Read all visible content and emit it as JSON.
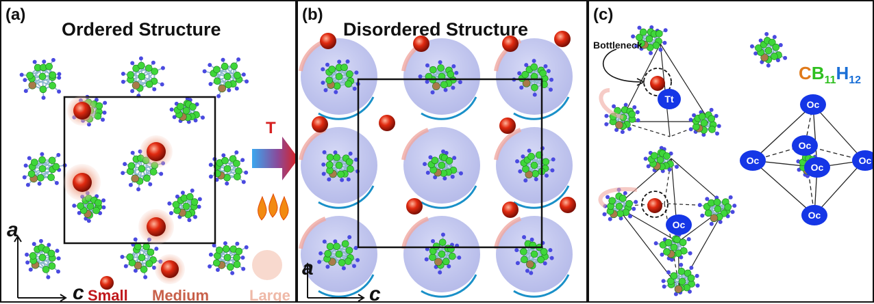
{
  "panel_a": {
    "label": "(a)",
    "title": "Ordered Structure",
    "axis_a": "a",
    "axis_c": "c",
    "legend": {
      "small": "Small",
      "medium": "Medium",
      "large": "Large"
    },
    "arrow_label": "T"
  },
  "panel_b": {
    "label": "(b)",
    "title": "Disordered Structure",
    "axis_a": "a",
    "axis_c": "c"
  },
  "panel_c": {
    "label": "(c)",
    "bottleneck_label": "Bottleneck",
    "formula": {
      "C": "C",
      "B": "B",
      "B_sub": "11",
      "H": "H",
      "H_sub": "12"
    },
    "tetra_site": "Tt",
    "oct_site": "Oc"
  },
  "colors": {
    "boron": "#3fd63a",
    "hydrogen": "#4a4ae0",
    "carbon": "#a97a4a",
    "bond": "#8fb8cf",
    "cation": "#e02a10",
    "site": "#1536e6",
    "small_label": "#c0171b",
    "medium_label": "#c8604a",
    "large_label": "#efb9a8",
    "formula_c": "#e07a1a",
    "formula_b": "#2fbf1f",
    "formula_h": "#1a6fd6"
  }
}
